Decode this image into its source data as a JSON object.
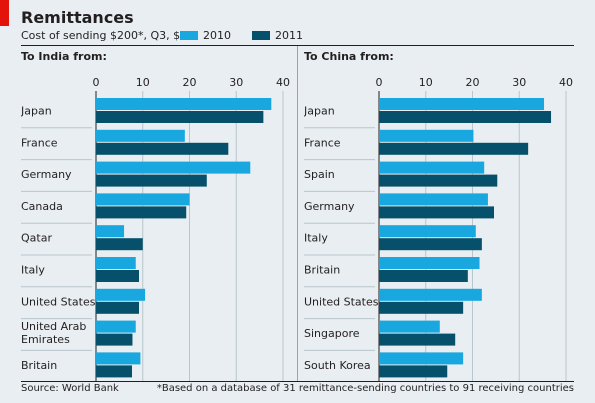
{
  "header": {
    "title": "Remittances",
    "subtitle": "Cost of sending $200*, Q3, $"
  },
  "legend": [
    {
      "label": "2010",
      "color": "#18a7de"
    },
    {
      "label": "2011",
      "color": "#07506b"
    }
  ],
  "footer": {
    "source": "Source: World Bank",
    "note": "*Based on a database of 31 remittance-sending countries to 91 receiving countries"
  },
  "chart_data": [
    {
      "type": "bar",
      "orientation": "horizontal",
      "title": "To India from:",
      "categories": [
        "Japan",
        "France",
        "Germany",
        "Canada",
        "Qatar",
        "Italy",
        "United States",
        "United Arab Emirates",
        "Britain"
      ],
      "series": [
        {
          "name": "2010",
          "color": "#18a7de",
          "values": [
            37.5,
            19.0,
            33.0,
            20.0,
            6.0,
            8.5,
            10.5,
            8.5,
            9.5
          ]
        },
        {
          "name": "2011",
          "color": "#07506b",
          "values": [
            35.8,
            28.3,
            23.7,
            19.3,
            10.0,
            9.2,
            9.2,
            7.8,
            7.7
          ]
        }
      ],
      "xlim": [
        0,
        40
      ],
      "ticks": [
        0,
        10,
        20,
        30,
        40
      ],
      "grid": true,
      "legend_position": "top"
    },
    {
      "type": "bar",
      "orientation": "horizontal",
      "title": "To China from:",
      "categories": [
        "Japan",
        "France",
        "Spain",
        "Germany",
        "Italy",
        "Britain",
        "United States",
        "Singapore",
        "South Korea"
      ],
      "series": [
        {
          "name": "2010",
          "color": "#18a7de",
          "values": [
            35.3,
            20.2,
            22.5,
            23.3,
            20.7,
            21.5,
            22.0,
            13.0,
            18.0
          ]
        },
        {
          "name": "2011",
          "color": "#07506b",
          "values": [
            36.8,
            31.9,
            25.3,
            24.6,
            22.0,
            19.0,
            18.0,
            16.3,
            14.6
          ]
        }
      ],
      "xlim": [
        0,
        40
      ],
      "ticks": [
        0,
        10,
        20,
        30,
        40
      ],
      "grid": true,
      "legend_position": "top"
    }
  ]
}
